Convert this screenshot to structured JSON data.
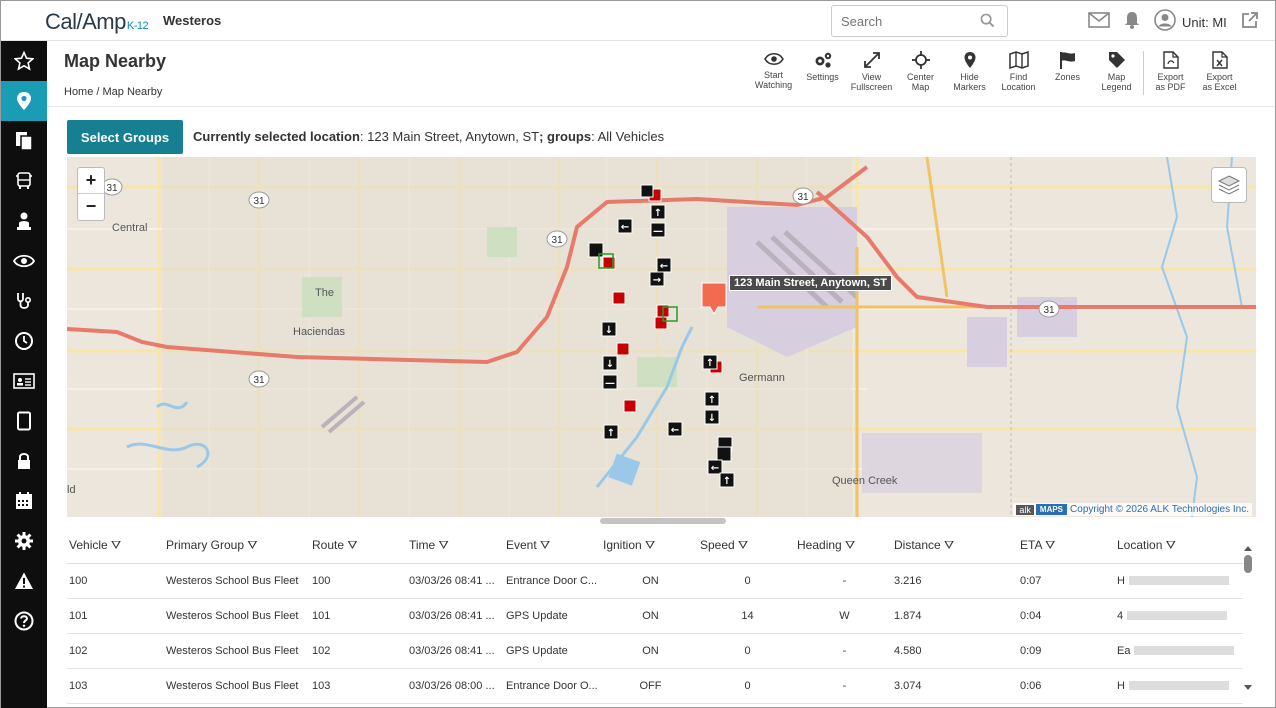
{
  "app": {
    "logo": "Cal/Amp",
    "logo_suffix": "K-12",
    "org": "Westeros"
  },
  "search": {
    "placeholder": "Search"
  },
  "header_right": {
    "unit_label": "Unit: MI"
  },
  "sidebar": {
    "items": [
      {
        "icon": "star-icon"
      },
      {
        "icon": "map-pin-icon",
        "active": true
      },
      {
        "icon": "documents-icon"
      },
      {
        "icon": "bus-icon"
      },
      {
        "icon": "student-icon"
      },
      {
        "icon": "eye-icon"
      },
      {
        "icon": "stethoscope-icon"
      },
      {
        "icon": "clock-icon"
      },
      {
        "icon": "id-card-icon"
      },
      {
        "icon": "tablet-icon"
      },
      {
        "icon": "lock-icon"
      },
      {
        "icon": "calendar-icon"
      },
      {
        "icon": "gear-icon"
      },
      {
        "icon": "warning-icon"
      },
      {
        "icon": "help-icon"
      }
    ]
  },
  "page": {
    "title": "Map Nearby",
    "breadcrumb": "Home / Map Nearby"
  },
  "toolbar": {
    "start_watching": [
      "Start",
      "Watching"
    ],
    "settings": [
      "Settings",
      ""
    ],
    "view_fullscreen": [
      "View",
      "Fullscreen"
    ],
    "center_map": [
      "Center",
      "Map"
    ],
    "hide_markers": [
      "Hide",
      "Markers"
    ],
    "find_location": [
      "Find",
      "Location"
    ],
    "zones": [
      "Zones",
      ""
    ],
    "map_legend": [
      "Map",
      "Legend"
    ],
    "export_pdf": [
      "Export",
      "as PDF"
    ],
    "export_excel": [
      "Export",
      "as Excel"
    ]
  },
  "selection": {
    "button": "Select Groups",
    "location_label": "Currently selected location",
    "location_value": ": 123 Main Street, Anytown, ST",
    "groups_label": "; groups",
    "groups_value": ": All Vehicles"
  },
  "map": {
    "address_tag": "123 Main Street, Anytown, ST",
    "zoom_in": "+",
    "zoom_out": "−",
    "labels": {
      "central": "Central",
      "the": "The",
      "haciendas": "Haciendas",
      "germann": "Germann",
      "queen_creek": "Queen Creek",
      "ld": "ld",
      "route": "31"
    },
    "copyright_alk": "alk",
    "copyright_maps": "MAPS",
    "copyright": "Copyright © 2026 ALK Technologies Inc."
  },
  "table": {
    "columns": [
      "Vehicle",
      "Primary Group",
      "Route",
      "Time",
      "Event",
      "Ignition",
      "Speed",
      "Heading",
      "Distance",
      "ETA",
      "Location"
    ],
    "rows": [
      {
        "vehicle": "100",
        "group": "Westeros School Bus Fleet",
        "route": "100",
        "time": "03/03/26 08:41 ...",
        "event": "Entrance Door C...",
        "ignition": "ON",
        "speed": "0",
        "heading": "-",
        "distance": "3.216",
        "eta": "0:07",
        "location": "H"
      },
      {
        "vehicle": "101",
        "group": "Westeros School Bus Fleet",
        "route": "101",
        "time": "03/03/26 08:41 ...",
        "event": "GPS Update",
        "ignition": "ON",
        "speed": "14",
        "heading": "W",
        "distance": "1.874",
        "eta": "0:04",
        "location": "4"
      },
      {
        "vehicle": "102",
        "group": "Westeros School Bus Fleet",
        "route": "102",
        "time": "03/03/26 08:41 ...",
        "event": "GPS Update",
        "ignition": "ON",
        "speed": "0",
        "heading": "-",
        "distance": "4.580",
        "eta": "0:09",
        "location": "Ea"
      },
      {
        "vehicle": "103",
        "group": "Westeros School Bus Fleet",
        "route": "103",
        "time": "03/03/26 08:00 ...",
        "event": "Entrance Door O...",
        "ignition": "OFF",
        "speed": "0",
        "heading": "-",
        "distance": "3.074",
        "eta": "0:06",
        "location": "H"
      }
    ]
  }
}
